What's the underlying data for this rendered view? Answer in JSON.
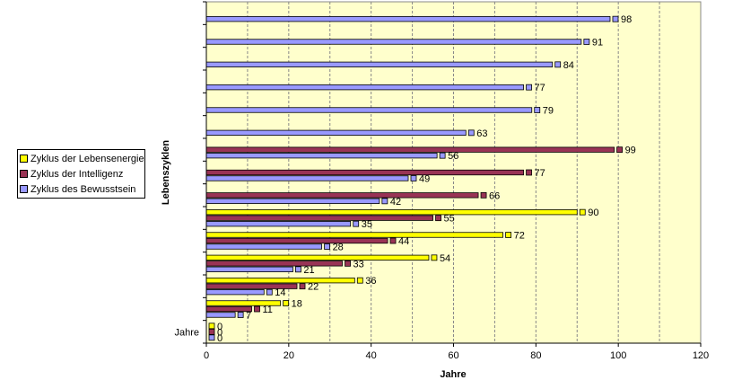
{
  "chart_data": {
    "type": "bar",
    "orientation": "horizontal",
    "xlabel": "Jahre",
    "ylabel": "Lebenszyklen",
    "xlim": [
      0,
      120
    ],
    "xticks": [
      0,
      20,
      40,
      60,
      80,
      100,
      120
    ],
    "categories": [
      "Jahre",
      "",
      "",
      "",
      "",
      "",
      "",
      "",
      "",
      "",
      "",
      "",
      "",
      "",
      ""
    ],
    "series": [
      {
        "name": "Zyklus der Lebensenergie",
        "color": "#ffff00",
        "values": [
          0,
          18,
          36,
          54,
          72,
          90,
          null,
          null,
          null,
          null,
          null,
          null,
          null,
          null,
          null
        ]
      },
      {
        "name": "Zyklus der Intelligenz",
        "color": "#993355",
        "values": [
          0,
          11,
          22,
          33,
          44,
          55,
          66,
          77,
          99,
          null,
          null,
          null,
          null,
          null,
          null
        ]
      },
      {
        "name": "Zyklus des Bewusstsein",
        "color": "#9999ff",
        "values": [
          0,
          7,
          14,
          21,
          28,
          35,
          42,
          49,
          56,
          63,
          79,
          77,
          84,
          91,
          98
        ]
      }
    ],
    "plot_background": "#ffffcc",
    "grid": true,
    "legend_position": "left"
  }
}
